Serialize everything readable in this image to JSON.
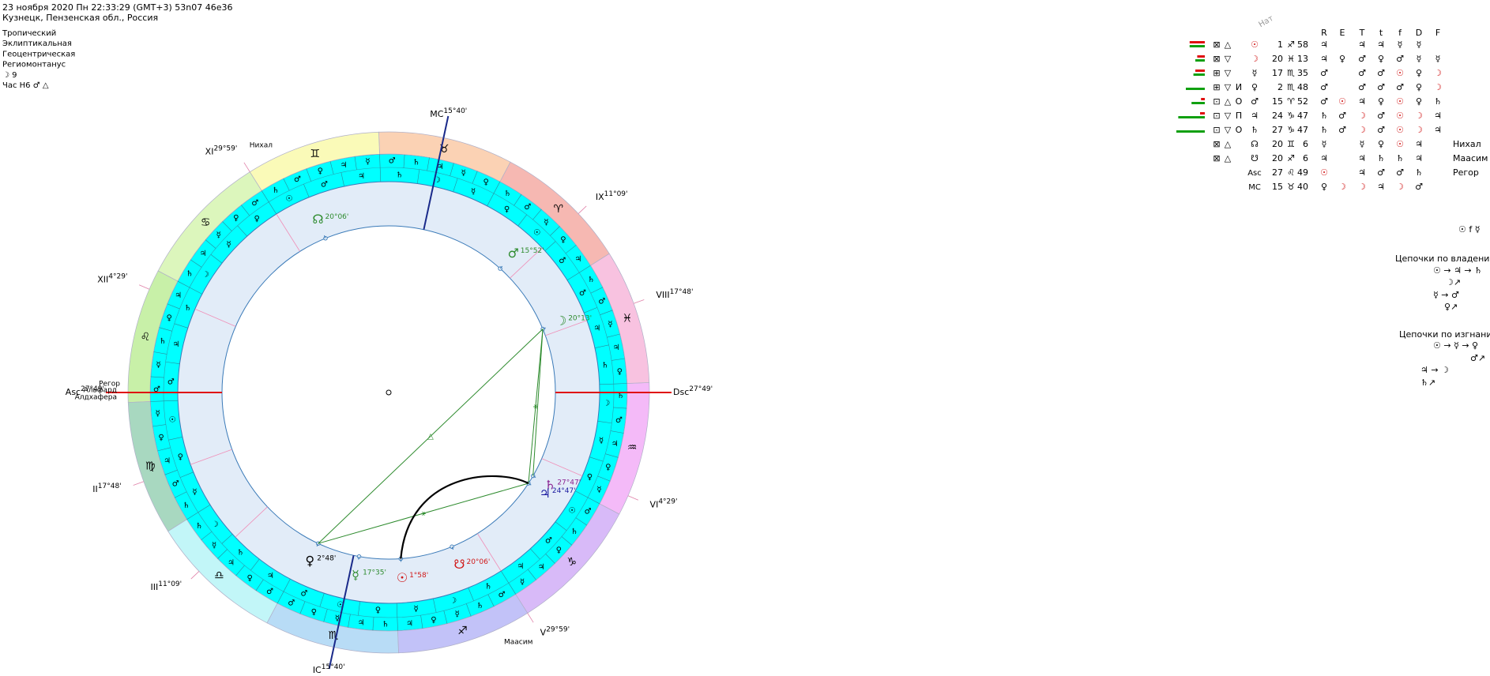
{
  "header": {
    "line1": "23 ноября 2020  Пн  22:33:29 (GMT+3) 53n07  46e36",
    "line2": "Кузнецк, Пензенская обл., Россия"
  },
  "info": [
    "Тропический",
    "Эклиптикальная",
    "Геоцентрическая",
    "Региомонтанус",
    "☽  9",
    "Час Н6  ♂ △"
  ],
  "wheel": {
    "signs": [
      {
        "glyph": "♈",
        "color": "#f6b8b2"
      },
      {
        "glyph": "♉",
        "color": "#fbd2b4"
      },
      {
        "glyph": "♊",
        "color": "#fafab8"
      },
      {
        "glyph": "♋",
        "color": "#dcf6bc"
      },
      {
        "glyph": "♌",
        "color": "#c8f0a8"
      },
      {
        "glyph": "♍",
        "color": "#a8d8c0"
      },
      {
        "glyph": "♎",
        "color": "#c2f6f8"
      },
      {
        "glyph": "♏",
        "color": "#b8dcf6"
      },
      {
        "glyph": "♐",
        "color": "#c2c2f8"
      },
      {
        "glyph": "♑",
        "color": "#d8baf8"
      },
      {
        "glyph": "♒",
        "color": "#f4baf8"
      },
      {
        "glyph": "♓",
        "color": "#f8c2e0"
      }
    ],
    "terms": [
      [
        "♃",
        "♀",
        "☿",
        "♂",
        "♄"
      ],
      [
        "♀",
        "☿",
        "♃",
        "♄",
        "♂"
      ],
      [
        "☿",
        "♃",
        "♀",
        "♂",
        "♄"
      ],
      [
        "♂",
        "♀",
        "☿",
        "♃",
        "♄"
      ],
      [
        "♃",
        "♀",
        "♄",
        "☿",
        "♂"
      ],
      [
        "☿",
        "♀",
        "♃",
        "♂",
        "♄"
      ],
      [
        "♄",
        "☿",
        "♃",
        "♀",
        "♂"
      ],
      [
        "♂",
        "♀",
        "☿",
        "♃",
        "♄"
      ],
      [
        "♃",
        "♀",
        "☿",
        "♄",
        "♂"
      ],
      [
        "☿",
        "♃",
        "♀",
        "♄",
        "♂"
      ],
      [
        "☿",
        "♀",
        "♃",
        "♂",
        "♄"
      ],
      [
        "♀",
        "♃",
        "☿",
        "♂",
        "♄"
      ]
    ],
    "decans": [
      "♂",
      "☉",
      "♀",
      "☿",
      "☽",
      "♄",
      "♃",
      "♂",
      "☉",
      "♀",
      "☿",
      "☽",
      "♄",
      "♃",
      "♂",
      "☉",
      "♀",
      "☿",
      "☽",
      "♄",
      "♃",
      "♂",
      "☉",
      "♀",
      "☿",
      "☽",
      "♄",
      "♃",
      "♂",
      "☉",
      "♀",
      "☿",
      "☽",
      "♄",
      "♃",
      "♂"
    ],
    "houses": [
      {
        "label": "Asc",
        "deg": "27°49'"
      },
      {
        "label": "II",
        "deg": "17°48'"
      },
      {
        "label": "III",
        "deg": "11°09'"
      },
      {
        "label": "IC",
        "deg": "15°40'"
      },
      {
        "label": "V",
        "deg": "29°59'"
      },
      {
        "label": "VI",
        "deg": "4°29'"
      },
      {
        "label": "Dsc",
        "deg": "27°49'"
      },
      {
        "label": "VIII",
        "deg": "17°48'"
      },
      {
        "label": "IX",
        "deg": "11°09'"
      },
      {
        "label": "MC",
        "deg": "15°40'"
      },
      {
        "label": "XI",
        "deg": "29°59'"
      },
      {
        "label": "XII",
        "deg": "4°29'"
      }
    ],
    "planets": [
      {
        "glyph": "☊",
        "deg": "20°06'",
        "color": "#2e8b2e"
      },
      {
        "glyph": "♂",
        "deg": "15°52'",
        "color": "#2e8b2e"
      },
      {
        "glyph": "☽",
        "deg": "20°13'",
        "color": "#2e8b2e"
      },
      {
        "glyph": "♄",
        "deg": "27°47'",
        "color": "#8a2090"
      },
      {
        "glyph": "♃",
        "deg": "24°47'",
        "color": "#1c1ca0"
      },
      {
        "glyph": "☉",
        "deg": "1°58'",
        "color": "#d01818"
      },
      {
        "glyph": "☋",
        "deg": "20°06'",
        "color": "#d01818"
      },
      {
        "glyph": "☿",
        "deg": "17°35'",
        "color": "#2e8b2e"
      },
      {
        "glyph": "♀",
        "deg": "2°48'",
        "color": "#000000"
      }
    ],
    "aspects": [
      "△",
      "⚹",
      "⚹"
    ],
    "stars": [
      "Нихал",
      "Маасим",
      "Регор",
      "Альфард",
      "Алдхафера"
    ]
  },
  "table": {
    "header": "Нат",
    "columns": [
      "R",
      "E",
      "T",
      "t",
      "f",
      "D",
      "F"
    ],
    "rows": [
      {
        "strength": {
          "red": 16,
          "green": 16
        },
        "icons": [
          "⊠",
          "△"
        ],
        "planet": "☉",
        "deg": "1",
        "sign": "♐",
        "min": "58",
        "cells": [
          "♃",
          null,
          "♃",
          "♃",
          "☿",
          "☿",
          null
        ]
      },
      {
        "strength": {
          "red": 8,
          "green": 10
        },
        "icons": [
          "⊠",
          "▽"
        ],
        "planet": "☽",
        "deg": "20",
        "sign": "♓",
        "min": "13",
        "cells": [
          "♃",
          "♀",
          "♂",
          "♀",
          "♂",
          "☿",
          "☿"
        ]
      },
      {
        "strength": {
          "red": 10,
          "green": 12
        },
        "icons": [
          "⊞",
          "▽"
        ],
        "planet": "☿",
        "deg": "17",
        "sign": "♏",
        "min": "35",
        "cells": [
          "♂",
          null,
          "♂",
          "♂",
          "☉",
          "♀",
          "☽"
        ]
      },
      {
        "strength": {
          "red": 0,
          "green": 20
        },
        "icons": [
          "⊞",
          "▽",
          "И"
        ],
        "planet": "♀",
        "deg": "2",
        "sign": "♏",
        "min": "48",
        "cells": [
          "♂",
          null,
          "♂",
          "♂",
          "♂",
          "♀",
          "☽"
        ]
      },
      {
        "strength": {
          "red": 4,
          "green": 14
        },
        "icons": [
          "⊡",
          "△",
          "О"
        ],
        "planet": "♂",
        "deg": "15",
        "sign": "♈",
        "min": "52",
        "cells": [
          "♂",
          "☉",
          "♃",
          "♀",
          "☉",
          "♀",
          "♄"
        ]
      },
      {
        "strength": {
          "red": 5,
          "green": 28
        },
        "icons": [
          "⊡",
          "▽",
          "П"
        ],
        "planet": "♃",
        "deg": "24",
        "sign": "♑",
        "min": "47",
        "cells": [
          "♄",
          "♂",
          "☽",
          "♂",
          "☉",
          "☽",
          "♃"
        ]
      },
      {
        "strength": {
          "red": 0,
          "green": 30
        },
        "icons": [
          "⊡",
          "▽",
          "О"
        ],
        "planet": "♄",
        "deg": "27",
        "sign": "♑",
        "min": "47",
        "cells": [
          "♄",
          "♂",
          "☽",
          "♂",
          "☉",
          "☽",
          "♃"
        ]
      },
      {
        "icons": [
          "⊠",
          "△"
        ],
        "planet": "☊",
        "deg": "20",
        "sign": "♊",
        "min": "6",
        "cells": [
          "☿",
          null,
          "☿",
          "♀",
          "☉",
          "♃",
          null
        ],
        "star": "Нихал"
      },
      {
        "icons": [
          "⊠",
          "△"
        ],
        "planet": "☋",
        "deg": "20",
        "sign": "♐",
        "min": "6",
        "cells": [
          "♃",
          null,
          "♃",
          "♄",
          "♄",
          "♃",
          null
        ],
        "star": "Маасим"
      },
      {
        "planet": "Asc",
        "deg": "27",
        "sign": "♌",
        "min": "49",
        "cells": [
          "☉",
          null,
          "♃",
          "♂",
          "♂",
          "♄",
          null
        ],
        "star": "Регор"
      },
      {
        "planet": "MC",
        "deg": "15",
        "sign": "♉",
        "min": "40",
        "cells": [
          "♀",
          "☽",
          "☽",
          "♃",
          "☽",
          "♂",
          null
        ]
      }
    ]
  },
  "rulership": "☉ f ☿",
  "chains": {
    "own_title": "Цепочки по владени",
    "own": [
      "☉ → ♃ → ♄",
      "☽↗",
      "☿ → ♂",
      "♀↗"
    ],
    "exile_title": "Цепочки по изгнани",
    "exile": [
      "☉ → ☿ → ♀",
      "♂↗",
      "♃ → ☽",
      "♄↗"
    ]
  }
}
